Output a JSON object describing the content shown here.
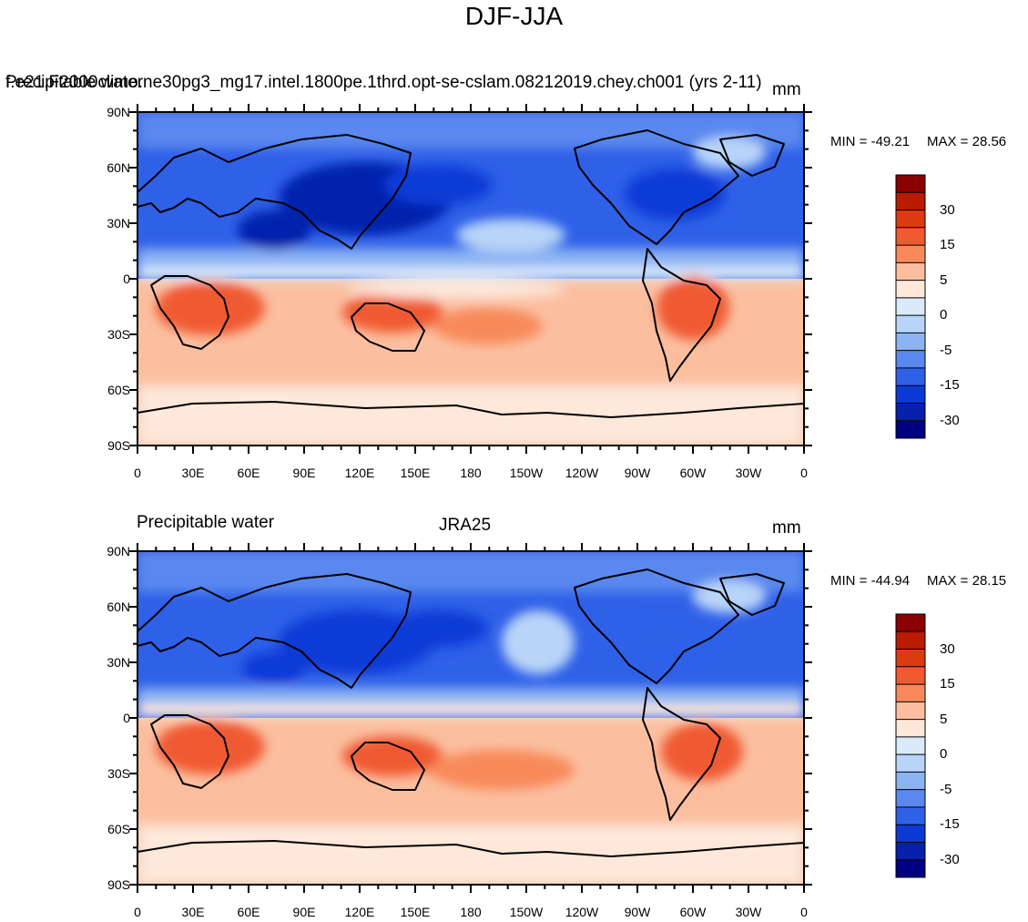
{
  "figure": {
    "title": "DJF-JJA"
  },
  "panels": [
    {
      "left_title": "Precipitable water",
      "center_title": "f.e21.F2000climo.ne30pg3_mg17.intel.1800pe.1thrd.opt-se-cslam.08212019.chey.ch001 (yrs 2-11)",
      "units": "mm",
      "min_label": "MIN = -49.21",
      "max_label": "MAX =  28.56",
      "variable": "Precipitable water",
      "season_difference": "DJF-JJA"
    },
    {
      "left_title": "Precipitable water",
      "center_title": "JRA25",
      "units": "mm",
      "min_label": "MIN = -44.94",
      "max_label": "MAX =  28.15",
      "variable": "Precipitable water",
      "season_difference": "DJF-JJA"
    }
  ],
  "axes": {
    "lat_ticks": [
      "90N",
      "60N",
      "30N",
      "0",
      "30S",
      "60S",
      "90S"
    ],
    "lon_ticks": [
      "0",
      "30E",
      "60E",
      "90E",
      "120E",
      "150E",
      "180",
      "150W",
      "120W",
      "90W",
      "60W",
      "30W",
      "0"
    ]
  },
  "colorbar": {
    "labels": [
      "30",
      "15",
      "5",
      "0",
      "-5",
      "-15",
      "-30"
    ],
    "colors": [
      "#8b0000",
      "#b81b00",
      "#dc3a10",
      "#f05a30",
      "#f88a5a",
      "#fbbfa0",
      "#fde8da",
      "#dbeafa",
      "#b8d4f8",
      "#8cb3f3",
      "#5a88ee",
      "#2f60e8",
      "#0c3ad6",
      "#0620ad",
      "#000080"
    ]
  },
  "map": {
    "projection": "cylindrical equidistant",
    "center_longitude": "180",
    "features": [
      "coastlines"
    ],
    "fill_type": "filled contours"
  }
}
